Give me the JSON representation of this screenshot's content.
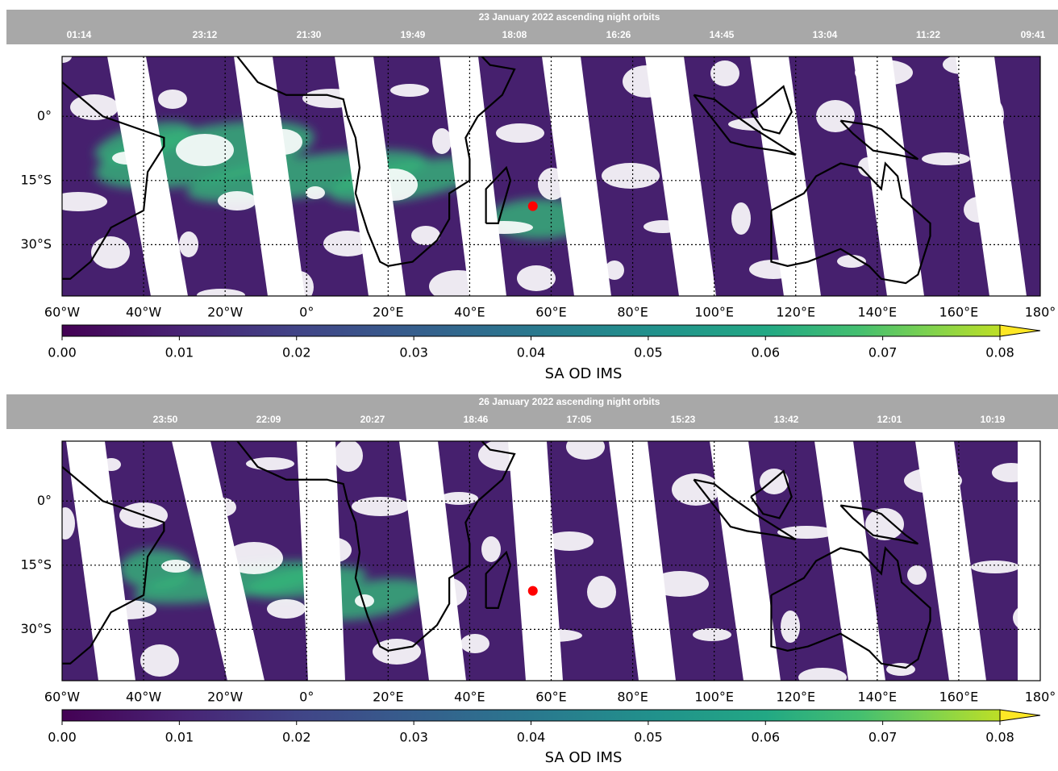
{
  "panels": [
    {
      "title": "23 January 2022  ascending night orbits",
      "times": [
        "01:14",
        "23:12",
        "21:30",
        "19:49",
        "18:08",
        "16:26",
        "14:45",
        "13:04",
        "11:22",
        "09:41"
      ],
      "lonlim": [
        -60,
        180
      ],
      "latlim": [
        -42,
        14
      ],
      "lon_ticks": [
        {
          "value": -60,
          "label": "60°W"
        },
        {
          "value": -40,
          "label": "40°W"
        },
        {
          "value": -20,
          "label": "20°W"
        },
        {
          "value": 0,
          "label": "0°"
        },
        {
          "value": 20,
          "label": "20°E"
        },
        {
          "value": 40,
          "label": "40°E"
        },
        {
          "value": 60,
          "label": "60°E"
        },
        {
          "value": 80,
          "label": "80°E"
        },
        {
          "value": 100,
          "label": "100°E"
        },
        {
          "value": 120,
          "label": "120°E"
        },
        {
          "value": 140,
          "label": "140°E"
        },
        {
          "value": 160,
          "label": "160°E"
        },
        {
          "value": 180,
          "label": "180°"
        }
      ],
      "lat_ticks": [
        {
          "value": 0,
          "label": "0°"
        },
        {
          "value": -15,
          "label": "15°S"
        },
        {
          "value": -30,
          "label": "30°S"
        }
      ],
      "colorbar": {
        "label": "SA OD IMS",
        "lim": [
          0,
          0.08
        ],
        "extend": "max",
        "ticks": [
          {
            "value": 0,
            "label": "0.00"
          },
          {
            "value": 0.01,
            "label": "0.01"
          },
          {
            "value": 0.02,
            "label": "0.02"
          },
          {
            "value": 0.03,
            "label": "0.03"
          },
          {
            "value": 0.04,
            "label": "0.04"
          },
          {
            "value": 0.05,
            "label": "0.05"
          },
          {
            "value": 0.06,
            "label": "0.06"
          },
          {
            "value": 0.07,
            "label": "0.07"
          },
          {
            "value": 0.08,
            "label": "0.08"
          }
        ]
      }
    },
    {
      "title": "26 January 2022  ascending night orbits",
      "times": [
        "23:50",
        "22:09",
        "20:27",
        "18:46",
        "17:05",
        "15:23",
        "13:42",
        "12:01",
        "10:19"
      ],
      "lonlim": [
        -60,
        180
      ],
      "latlim": [
        -42,
        14
      ],
      "lon_ticks": [
        {
          "value": -60,
          "label": "60°W"
        },
        {
          "value": -40,
          "label": "40°W"
        },
        {
          "value": -20,
          "label": "20°W"
        },
        {
          "value": 0,
          "label": "0°"
        },
        {
          "value": 20,
          "label": "20°E"
        },
        {
          "value": 40,
          "label": "40°E"
        },
        {
          "value": 60,
          "label": "60°E"
        },
        {
          "value": 80,
          "label": "80°E"
        },
        {
          "value": 100,
          "label": "100°E"
        },
        {
          "value": 120,
          "label": "120°E"
        },
        {
          "value": 140,
          "label": "140°E"
        },
        {
          "value": 160,
          "label": "160°E"
        },
        {
          "value": 180,
          "label": "180°"
        }
      ],
      "lat_ticks": [
        {
          "value": 0,
          "label": "0°"
        },
        {
          "value": -15,
          "label": "15°S"
        },
        {
          "value": -30,
          "label": "30°S"
        }
      ],
      "colorbar": {
        "label": "SA OD IMS",
        "lim": [
          0,
          0.08
        ],
        "extend": "max",
        "ticks": [
          {
            "value": 0,
            "label": "0.00"
          },
          {
            "value": 0.01,
            "label": "0.01"
          },
          {
            "value": 0.02,
            "label": "0.02"
          },
          {
            "value": 0.03,
            "label": "0.03"
          },
          {
            "value": 0.04,
            "label": "0.04"
          },
          {
            "value": 0.05,
            "label": "0.05"
          },
          {
            "value": 0.06,
            "label": "0.06"
          },
          {
            "value": 0.07,
            "label": "0.07"
          },
          {
            "value": 0.08,
            "label": "0.08"
          }
        ]
      }
    }
  ]
}
